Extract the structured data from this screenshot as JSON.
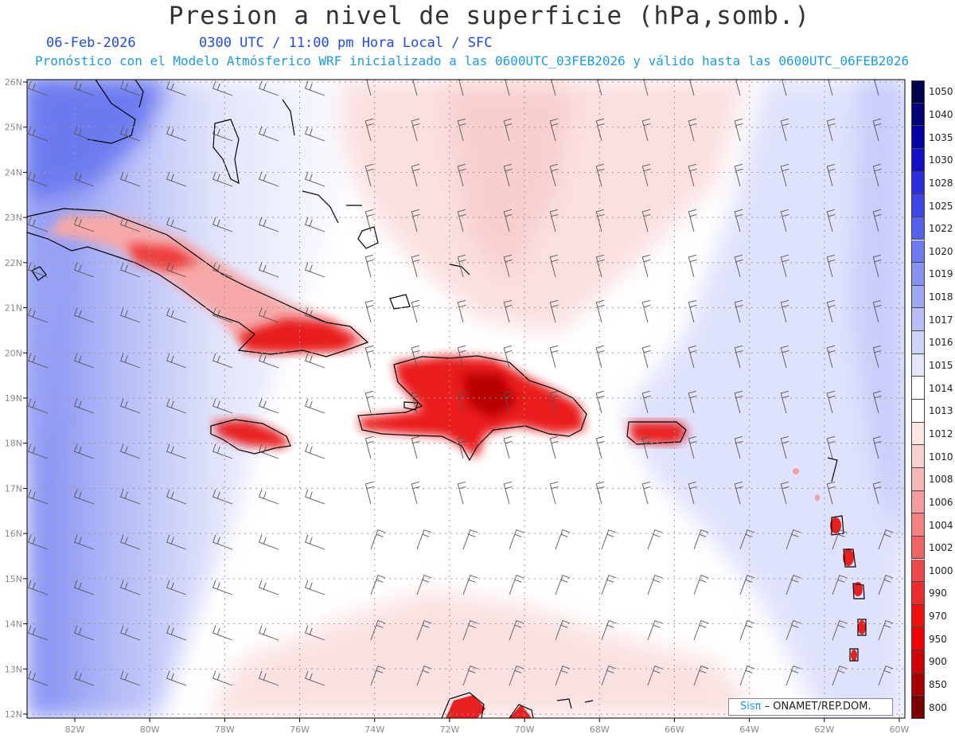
{
  "header": {
    "title": "Presion a nivel de superficie (hPa,somb.)",
    "date": "06-Feb-2026",
    "time_info": "0300 UTC / 11:00 pm Hora Local / SFC",
    "model_info": "Pronóstico con el Modelo Atmósferico WRF inicializado a las 0600UTC_03FEB2026 y válido hasta las  0600UTC_06FEB2026"
  },
  "map": {
    "lat_labels": [
      "26N",
      "25N",
      "24N",
      "23N",
      "22N",
      "21N",
      "20N",
      "19N",
      "18N",
      "17N",
      "16N",
      "15N",
      "14N",
      "13N",
      "12N"
    ],
    "lon_labels": [
      "82W",
      "80W",
      "78W",
      "76W",
      "74W",
      "72W",
      "70W",
      "68W",
      "66W",
      "64W",
      "62W",
      "60W"
    ],
    "colors": {
      "low_pressure": "#e8000c",
      "high_pressure": "#5a6ff0",
      "background": "#ffffff"
    }
  },
  "colorbar": {
    "levels": [
      {
        "label": "1050",
        "color": "#000050"
      },
      {
        "label": "1040",
        "color": "#00007a"
      },
      {
        "label": "1035",
        "color": "#0000a8"
      },
      {
        "label": "1030",
        "color": "#1010c8"
      },
      {
        "label": "1028",
        "color": "#2a2ee0"
      },
      {
        "label": "1025",
        "color": "#3c46ea"
      },
      {
        "label": "1022",
        "color": "#5560ee"
      },
      {
        "label": "1020",
        "color": "#6e7af2"
      },
      {
        "label": "1019",
        "color": "#8892f4"
      },
      {
        "label": "1018",
        "color": "#a0a8f6"
      },
      {
        "label": "1017",
        "color": "#b8bef8"
      },
      {
        "label": "1016",
        "color": "#cfd3fa"
      },
      {
        "label": "1015",
        "color": "#e4e6fc"
      },
      {
        "label": "1014",
        "color": "#ffffff"
      },
      {
        "label": "1013",
        "color": "#ffffff"
      },
      {
        "label": "1012",
        "color": "#fde6e6"
      },
      {
        "label": "1010",
        "color": "#fbd0d0"
      },
      {
        "label": "1008",
        "color": "#f9b6b6"
      },
      {
        "label": "1006",
        "color": "#f69c9c"
      },
      {
        "label": "1004",
        "color": "#f48080"
      },
      {
        "label": "1002",
        "color": "#f26464"
      },
      {
        "label": "1000",
        "color": "#f04848"
      },
      {
        "label": "990",
        "color": "#ee2c2c"
      },
      {
        "label": "970",
        "color": "#f01010"
      },
      {
        "label": "950",
        "color": "#f00000"
      },
      {
        "label": "900",
        "color": "#d00000"
      },
      {
        "label": "850",
        "color": "#a80000"
      },
      {
        "label": "800",
        "color": "#7a0000"
      }
    ]
  },
  "credit": {
    "brand": "Sisπ",
    "text": "– ONAMET/REP.DOM."
  }
}
